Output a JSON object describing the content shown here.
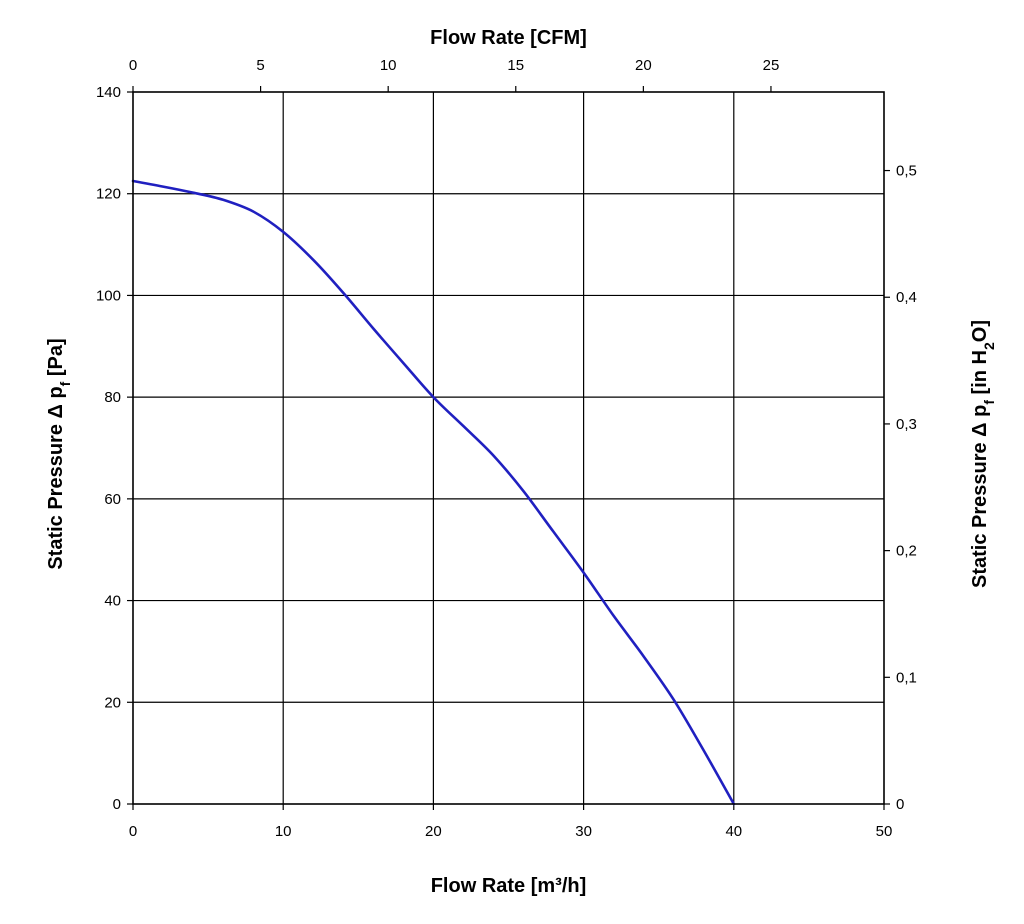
{
  "chart_data": {
    "type": "line",
    "title": "",
    "xlabel": "Flow Rate [m³/h]",
    "x2label": "Flow Rate [CFM]",
    "ylabel": "Static Pressure Δ p",
    "ylabel_sub": "f",
    "ylabel_unit": " [Pa]",
    "y2label": "Static Pressure Δ p",
    "y2label_sub": "f",
    "y2label_unit_prefix": " [in H",
    "y2label_unit_sub": "2",
    "y2label_unit_suffix": "O]",
    "xlim": [
      0,
      50
    ],
    "ylim": [
      0,
      140
    ],
    "x2lim": [
      0,
      29.43
    ],
    "y2lim": [
      0,
      0.562
    ],
    "x_ticks": [
      "0",
      "10",
      "20",
      "30",
      "40",
      "50"
    ],
    "x_tick_values": [
      0,
      10,
      20,
      30,
      40,
      50
    ],
    "y_ticks": [
      "0",
      "20",
      "40",
      "60",
      "80",
      "100",
      "120",
      "140"
    ],
    "y_tick_values": [
      0,
      20,
      40,
      60,
      80,
      100,
      120,
      140
    ],
    "x2_ticks": [
      "0",
      "5",
      "10",
      "15",
      "20",
      "25"
    ],
    "x2_tick_values": [
      0,
      5,
      10,
      15,
      20,
      25
    ],
    "y2_ticks": [
      "0",
      "0,1",
      "0,2",
      "0,3",
      "0,4",
      "0,5"
    ],
    "y2_tick_values": [
      0,
      0.1,
      0.2,
      0.3,
      0.4,
      0.5
    ],
    "grid": true,
    "legend": "none",
    "series": [
      {
        "color": "#2020c0",
        "x": [
          0,
          2,
          4,
          6,
          8,
          10,
          12,
          14,
          16,
          18,
          20,
          22,
          24,
          26,
          28,
          30,
          32,
          34,
          36,
          38,
          40
        ],
        "y": [
          122.5,
          121.4,
          120.2,
          118.8,
          116.5,
          112.5,
          107,
          100.5,
          93.5,
          86.7,
          80,
          74.3,
          68.5,
          61.5,
          53.5,
          45.5,
          37,
          29,
          20.5,
          10.5,
          0
        ]
      }
    ]
  }
}
